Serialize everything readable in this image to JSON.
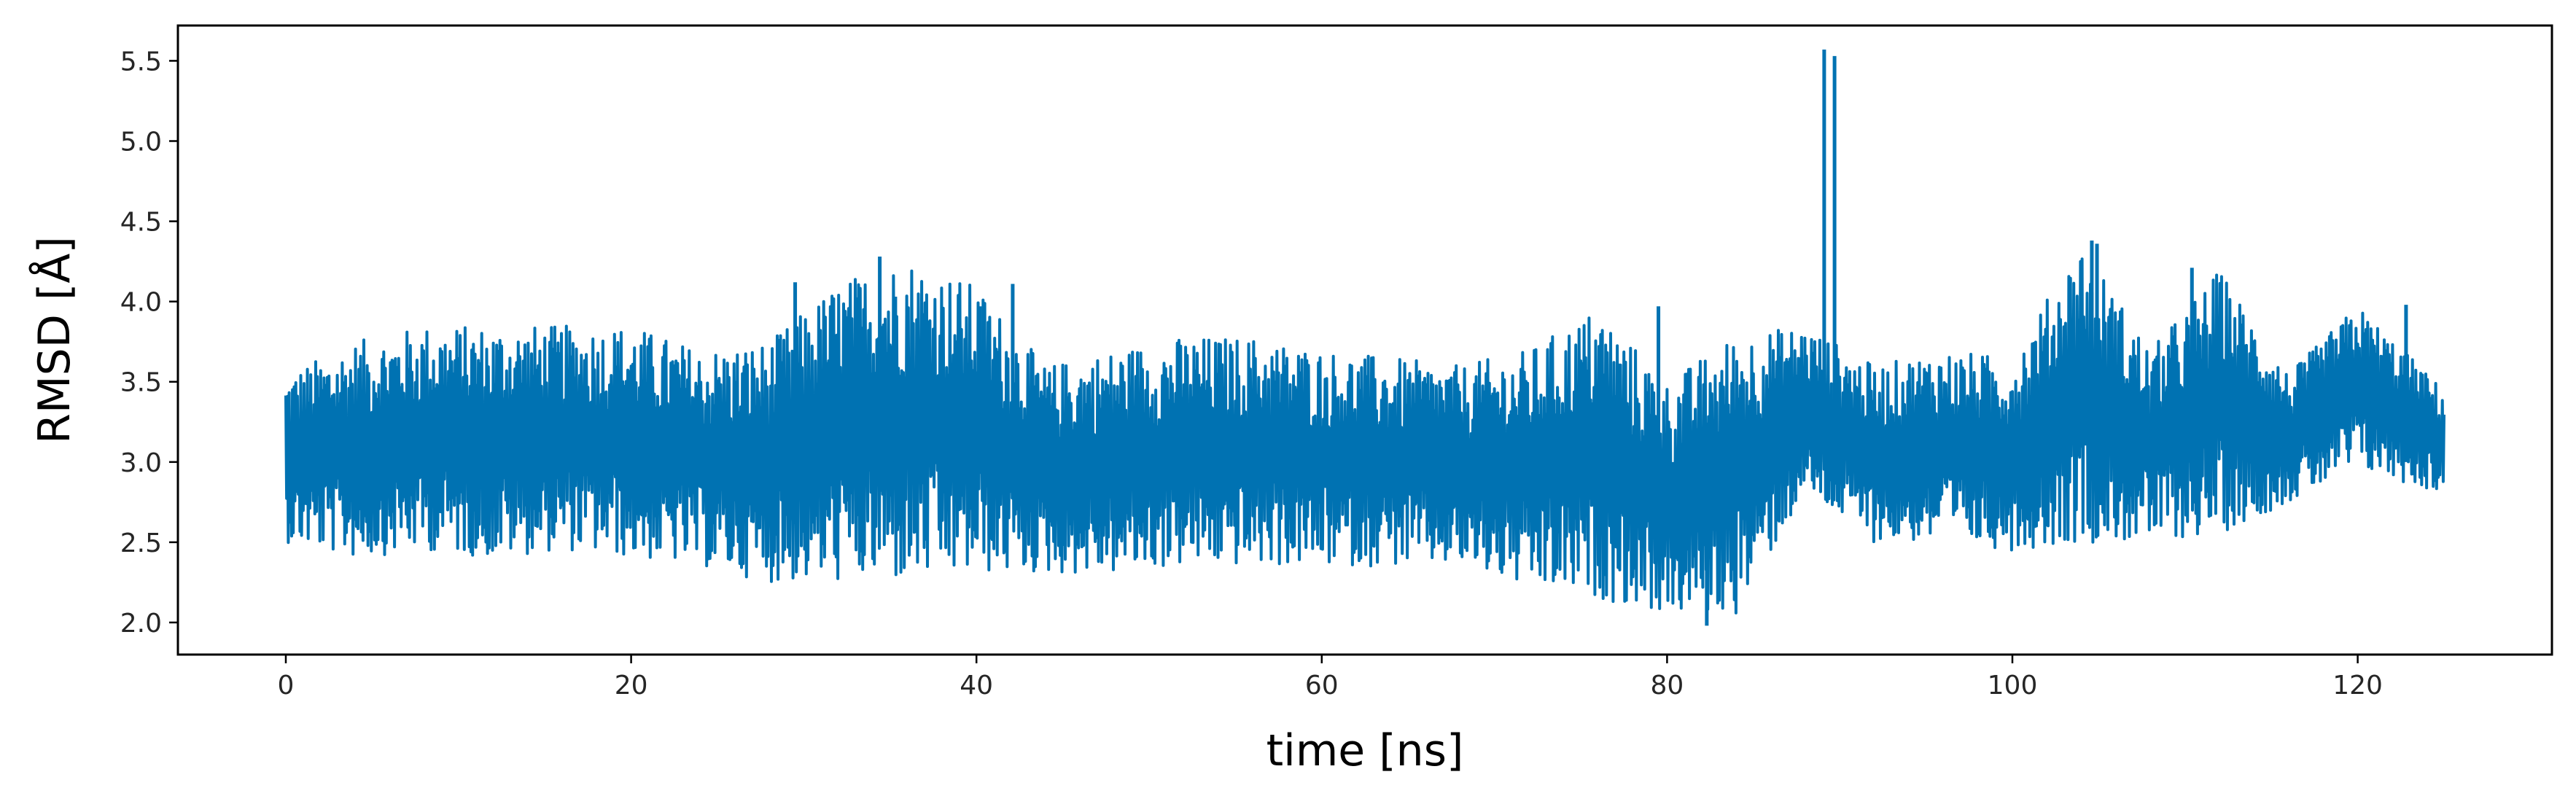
{
  "chart_data": {
    "type": "line",
    "title": "",
    "xlabel": "time [ns]",
    "ylabel": "RMSD [Å]",
    "xlim": [
      -6.25,
      131.25
    ],
    "ylim": [
      1.8,
      5.72
    ],
    "xticks": [
      0,
      20,
      40,
      60,
      80,
      100,
      120
    ],
    "yticks": [
      2.0,
      2.5,
      3.0,
      3.5,
      4.0,
      4.5,
      5.0,
      5.5
    ],
    "xtick_labels": [
      "0",
      "20",
      "40",
      "60",
      "80",
      "100",
      "120"
    ],
    "ytick_labels": [
      "2.0",
      "2.5",
      "3.0",
      "3.5",
      "4.0",
      "4.5",
      "5.0",
      "5.5"
    ],
    "grid": false,
    "legend": "none",
    "line_color": "#0072b2",
    "series": [
      {
        "x": [
          0,
          4,
          8,
          12,
          16,
          20,
          24,
          28,
          32,
          36,
          40,
          44,
          48,
          52,
          56,
          60,
          64,
          68,
          72,
          76,
          80,
          84,
          88,
          92,
          96,
          100,
          104,
          108,
          112,
          116,
          120,
          125
        ],
        "y_min": [
          2.5,
          2.4,
          2.45,
          2.4,
          2.45,
          2.4,
          2.35,
          2.25,
          2.25,
          2.25,
          2.3,
          2.3,
          2.3,
          2.35,
          2.35,
          2.35,
          2.35,
          2.35,
          2.2,
          2.15,
          2.05,
          2.05,
          2.8,
          2.5,
          2.5,
          2.45,
          2.5,
          2.5,
          2.55,
          2.75,
          2.95,
          2.8
        ],
        "y_max": [
          3.55,
          3.75,
          3.85,
          3.85,
          3.85,
          3.85,
          3.7,
          3.75,
          4.12,
          4.28,
          4.1,
          3.6,
          3.7,
          3.78,
          3.78,
          3.7,
          3.65,
          3.6,
          3.7,
          3.97,
          3.5,
          3.8,
          3.85,
          3.6,
          3.7,
          3.65,
          4.38,
          3.7,
          4.2,
          3.55,
          3.98,
          3.45
        ]
      }
    ],
    "spikes": [
      {
        "x": 29.5,
        "y": 4.12
      },
      {
        "x": 34.4,
        "y": 4.28
      },
      {
        "x": 35.3,
        "y": 4.03
      },
      {
        "x": 40.2,
        "y": 3.97
      },
      {
        "x": 42.1,
        "y": 4.11
      },
      {
        "x": 89.1,
        "y": 5.57
      },
      {
        "x": 89.7,
        "y": 5.53
      },
      {
        "x": 104.6,
        "y": 4.38
      },
      {
        "x": 104.9,
        "y": 4.36
      },
      {
        "x": 110.4,
        "y": 4.21
      },
      {
        "x": 122.8,
        "y": 3.98
      },
      {
        "x": 82.3,
        "y": 1.98
      },
      {
        "x": 79.5,
        "y": 3.97
      }
    ]
  }
}
